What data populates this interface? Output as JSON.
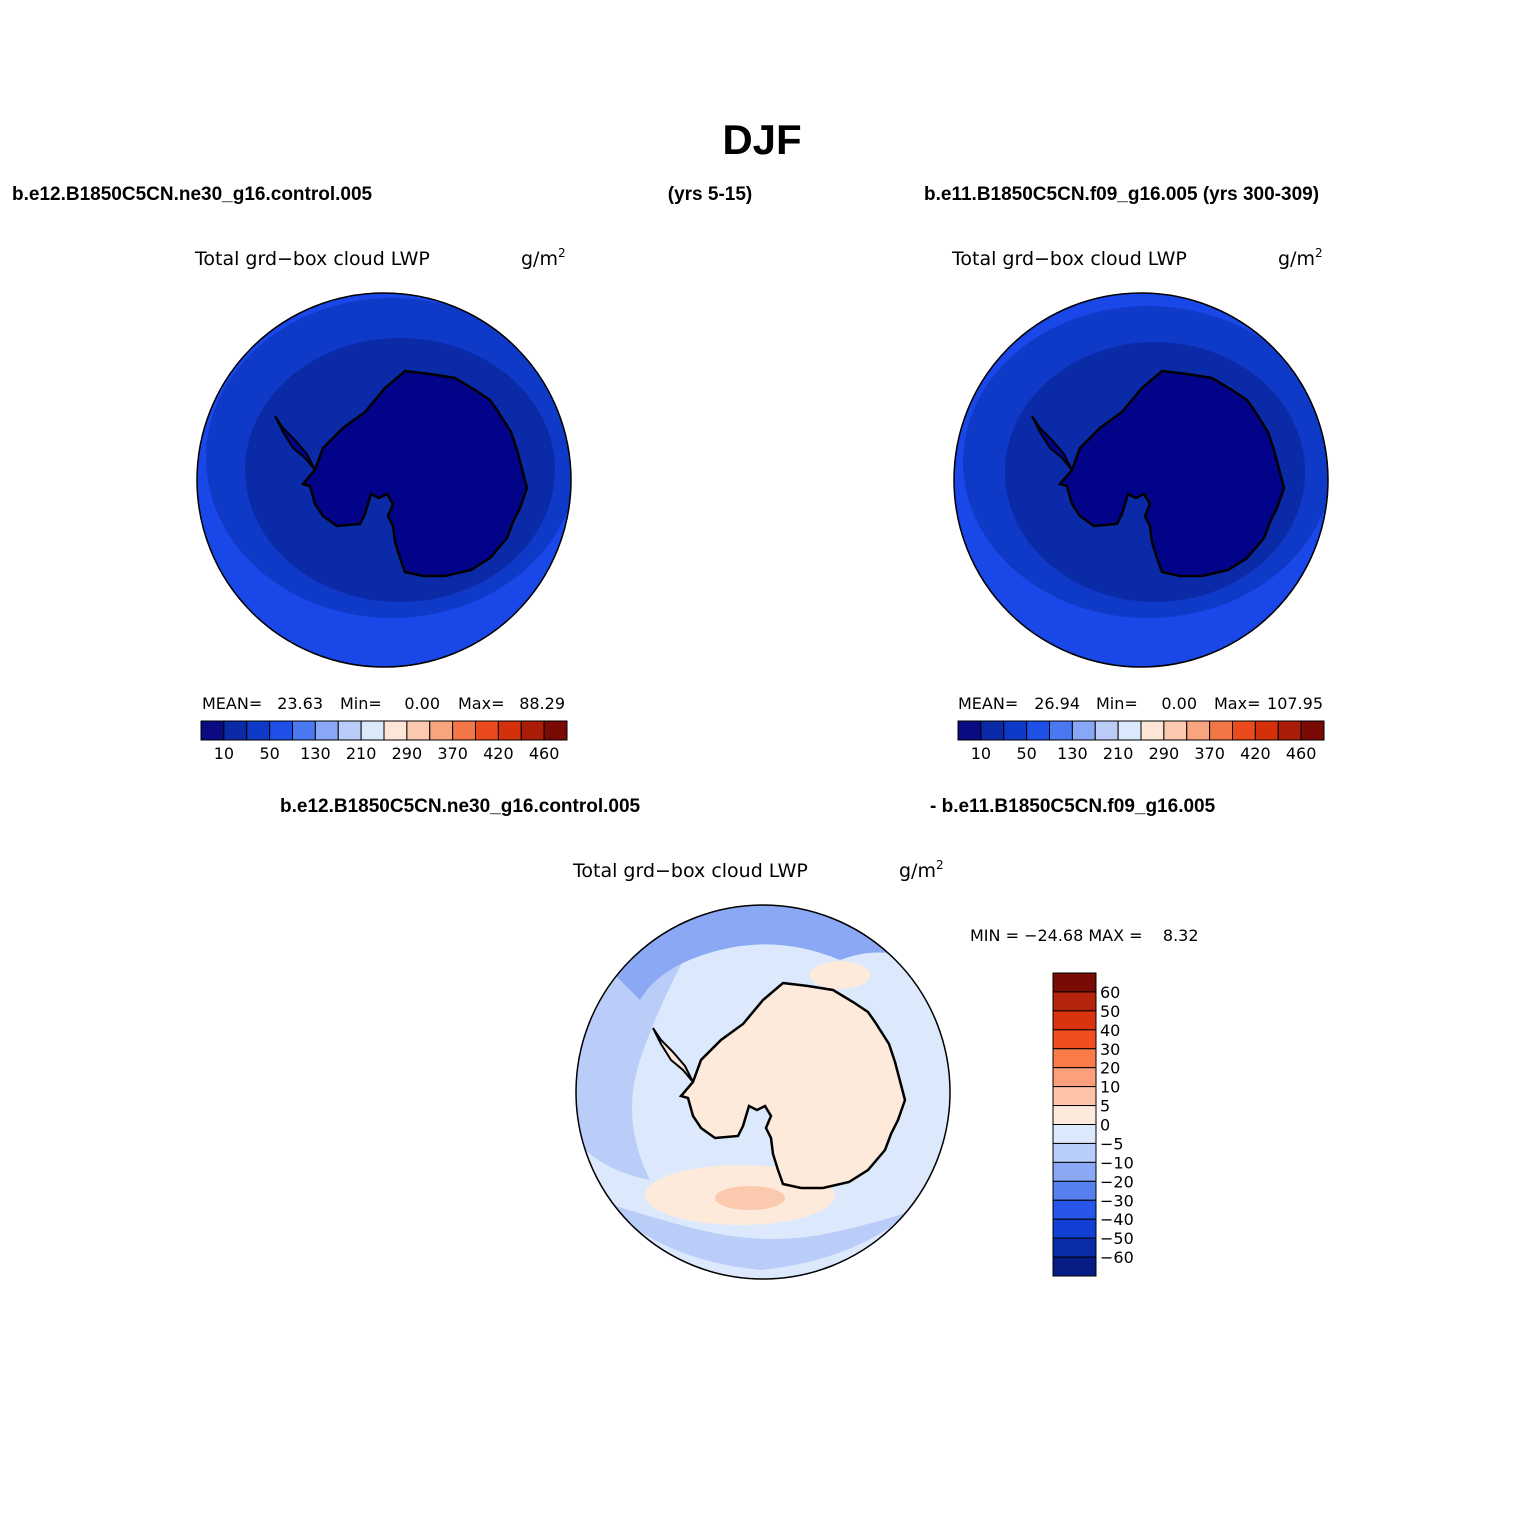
{
  "title": "DJF",
  "header": {
    "left_case": "b.e12.B1850C5CN.ne30_g16.control.005",
    "left_years": "(yrs 5-15)",
    "right_case": "b.e11.B1850C5CN.f09_g16.005 (yrs 300-309)",
    "diff_left": "b.e12.B1850C5CN.ne30_g16.control.005",
    "diff_right": "- b.e11.B1850C5CN.f09_g16.005"
  },
  "panels": [
    {
      "variable": "Total grd−box cloud LWP",
      "units": "g/m",
      "units_sup": "2",
      "stats": {
        "mean_label": "MEAN=",
        "mean": "23.63",
        "min_label": "Min=",
        "min": "0.00",
        "max_label": "Max=",
        "max": "88.29"
      }
    },
    {
      "variable": "Total grd−box cloud LWP",
      "units": "g/m",
      "units_sup": "2",
      "stats": {
        "mean_label": "MEAN=",
        "mean": "26.94",
        "min_label": "Min=",
        "min": "0.00",
        "max_label": "Max=",
        "max": "107.95"
      }
    },
    {
      "variable": "Total grd−box cloud LWP",
      "units": "g/m",
      "units_sup": "2",
      "minmax": "MIN = −24.68 MAX =    8.32"
    }
  ],
  "colorbar_abs": {
    "colors": [
      "#0a0a82",
      "#0b2aa8",
      "#0f3ac8",
      "#1e4fe6",
      "#4a78f0",
      "#88a8f5",
      "#b9cdf8",
      "#dce8fb",
      "#fde6d6",
      "#fbc9ae",
      "#f7a47f",
      "#f37647",
      "#ec4a1e",
      "#d4300c",
      "#a81c08",
      "#7a0a04"
    ],
    "labels": [
      "10",
      "50",
      "130",
      "210",
      "290",
      "370",
      "420",
      "460"
    ]
  },
  "colorbar_diff": {
    "colors": [
      "#7a0a04",
      "#b3240a",
      "#d9340e",
      "#f14e1f",
      "#f97b4a",
      "#fba07a",
      "#fdc4a8",
      "#fdeadb",
      "#dce8fb",
      "#b8cdf8",
      "#8aa8f4",
      "#5580ee",
      "#2756e8",
      "#1340d4",
      "#0b2ca8",
      "#081c86"
    ],
    "labels": [
      "60",
      "50",
      "40",
      "30",
      "20",
      "10",
      "5",
      "0",
      "−5",
      "−10",
      "−20",
      "−30",
      "−40",
      "−50",
      "−60"
    ]
  },
  "map_colors": {
    "abs_outer": "#1a47e8",
    "abs_ring2": "#0f3ac8",
    "abs_ring3": "#0b2aa8",
    "abs_inner": "#03038a",
    "diff_base": "#dce8fb",
    "diff_ocean": "#b9cdf8",
    "diff_blue": "#8aa8f4",
    "diff_land": "#fdeadb",
    "diff_warm": "#fbc9ae"
  }
}
